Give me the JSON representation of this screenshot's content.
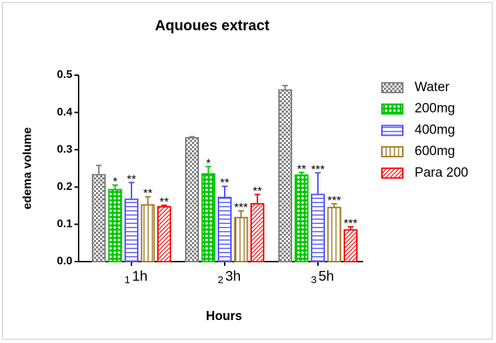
{
  "chart_data": {
    "type": "bar",
    "title": "Aquoues extract",
    "xlabel": "Hours",
    "ylabel": "edema volume",
    "categories": [
      "1h",
      "3h",
      "5h"
    ],
    "category_numbers": [
      "1",
      "2",
      "3"
    ],
    "ylim": [
      0,
      0.5
    ],
    "yticks": [
      {
        "value": 0,
        "label": "0.0"
      },
      0.1,
      0.2,
      0.3,
      0.4,
      0.5
    ],
    "legend": "right",
    "series": [
      {
        "name": "Water",
        "color": "#808080",
        "values": [
          0.233,
          0.332,
          0.46
        ],
        "errors": [
          0.025,
          0.003,
          0.012
        ],
        "value_labels": [
          null,
          null,
          null
        ]
      },
      {
        "name": "200mg",
        "color": "#00c800",
        "values": [
          0.193,
          0.235,
          0.232
        ],
        "errors": [
          0.012,
          0.02,
          0.007
        ],
        "value_labels": [
          "*",
          "*",
          "**"
        ]
      },
      {
        "name": "400mg",
        "color": "#5050ff",
        "values": [
          0.167,
          0.172,
          0.18
        ],
        "errors": [
          0.045,
          0.03,
          0.058
        ],
        "value_labels": [
          "**",
          "**",
          "***"
        ]
      },
      {
        "name": "600mg",
        "color": "#a07828",
        "values": [
          0.152,
          0.118,
          0.145
        ],
        "errors": [
          0.022,
          0.018,
          0.01
        ],
        "value_labels": [
          "**",
          "***",
          "***"
        ]
      },
      {
        "name": "Para 200",
        "color": "#ff0000",
        "values": [
          0.147,
          0.155,
          0.085
        ],
        "errors": [
          0.004,
          0.025,
          0.008
        ],
        "value_labels": [
          "**",
          "**",
          "***"
        ]
      }
    ]
  }
}
